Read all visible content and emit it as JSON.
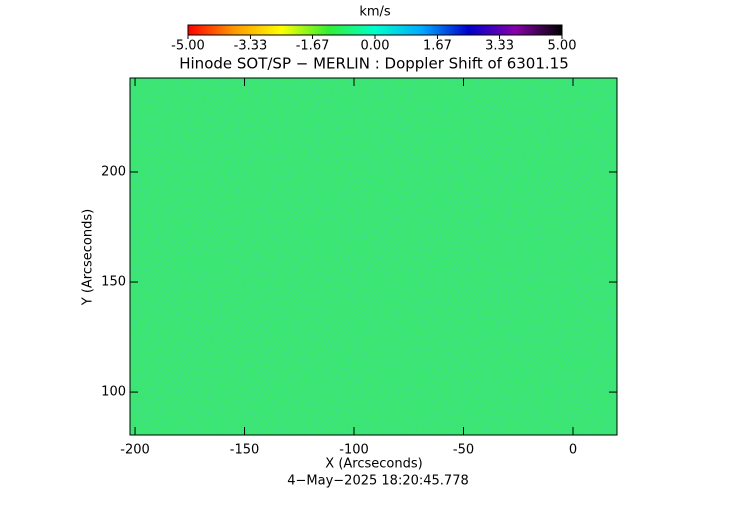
{
  "chart_data": {
    "type": "heatmap",
    "title": "Hinode SOT/SP − MERLIN : Doppler Shift of 6301.15",
    "colorbar_label": "km/s",
    "colorbar_lim": [
      -5,
      5
    ],
    "colorbar_ticks": [
      {
        "value": -5,
        "label": "-5.00"
      },
      {
        "value": -3.33,
        "label": "-3.33"
      },
      {
        "value": -1.67,
        "label": "-1.67"
      },
      {
        "value": 0,
        "label": "0.00"
      },
      {
        "value": 1.67,
        "label": "1.67"
      },
      {
        "value": 3.33,
        "label": "3.33"
      },
      {
        "value": 5,
        "label": "5.00"
      }
    ],
    "colorbar_colors": [
      "#ff0000",
      "#ff9900",
      "#ffff00",
      "#33ee33",
      "#00ffcc",
      "#00aaff",
      "#0000cc",
      "#8800aa",
      "#000000"
    ],
    "x_label": "X (Arcseconds)",
    "y_label": "Y (Arcseconds)",
    "xlim": [
      -202.3,
      20.1
    ],
    "ylim": [
      80.5,
      242.7
    ],
    "xticks": [
      -200,
      -150,
      -100,
      -50,
      0
    ],
    "yticks": [
      100,
      150,
      200
    ],
    "timestamp": "4−May−2025 18:20:45.778"
  }
}
